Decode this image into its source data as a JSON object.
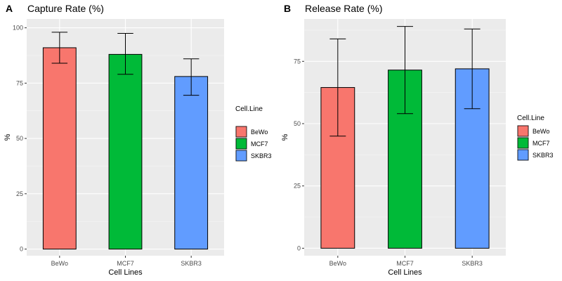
{
  "colors": {
    "panel_bg": "#EBEBEB",
    "grid_major": "#FFFFFF",
    "grid_minor": "#F5F5F5",
    "bar_stroke": "#000000",
    "BeWo": "#F8766D",
    "MCF7": "#00BA38",
    "SKBR3": "#619CFF"
  },
  "chart_data": [
    {
      "type": "bar",
      "letter": "A",
      "title": "Capture Rate (%)",
      "xlabel": "Cell Lines",
      "ylabel": "%",
      "categories": [
        "BeWo",
        "MCF7",
        "SKBR3"
      ],
      "values": [
        91,
        88,
        78
      ],
      "error_low": [
        84,
        79,
        69.5
      ],
      "error_high": [
        98,
        97.5,
        86
      ],
      "ylim": [
        -3,
        104
      ],
      "yticks": [
        0,
        25,
        50,
        75,
        100
      ],
      "legend": {
        "title": "Cell.Line",
        "position": "right",
        "entries": [
          "BeWo",
          "MCF7",
          "SKBR3"
        ]
      }
    },
    {
      "type": "bar",
      "letter": "B",
      "title": "Release Rate (%)",
      "xlabel": "Cell Lines",
      "ylabel": "%",
      "categories": [
        "BeWo",
        "MCF7",
        "SKBR3"
      ],
      "values": [
        64.5,
        71.5,
        72
      ],
      "error_low": [
        45,
        54,
        56
      ],
      "error_high": [
        84,
        89,
        88
      ],
      "ylim": [
        -3,
        92
      ],
      "yticks": [
        0,
        25,
        50,
        75
      ],
      "legend": {
        "title": "Cell.Line",
        "position": "right",
        "entries": [
          "BeWo",
          "MCF7",
          "SKBR3"
        ]
      }
    }
  ]
}
